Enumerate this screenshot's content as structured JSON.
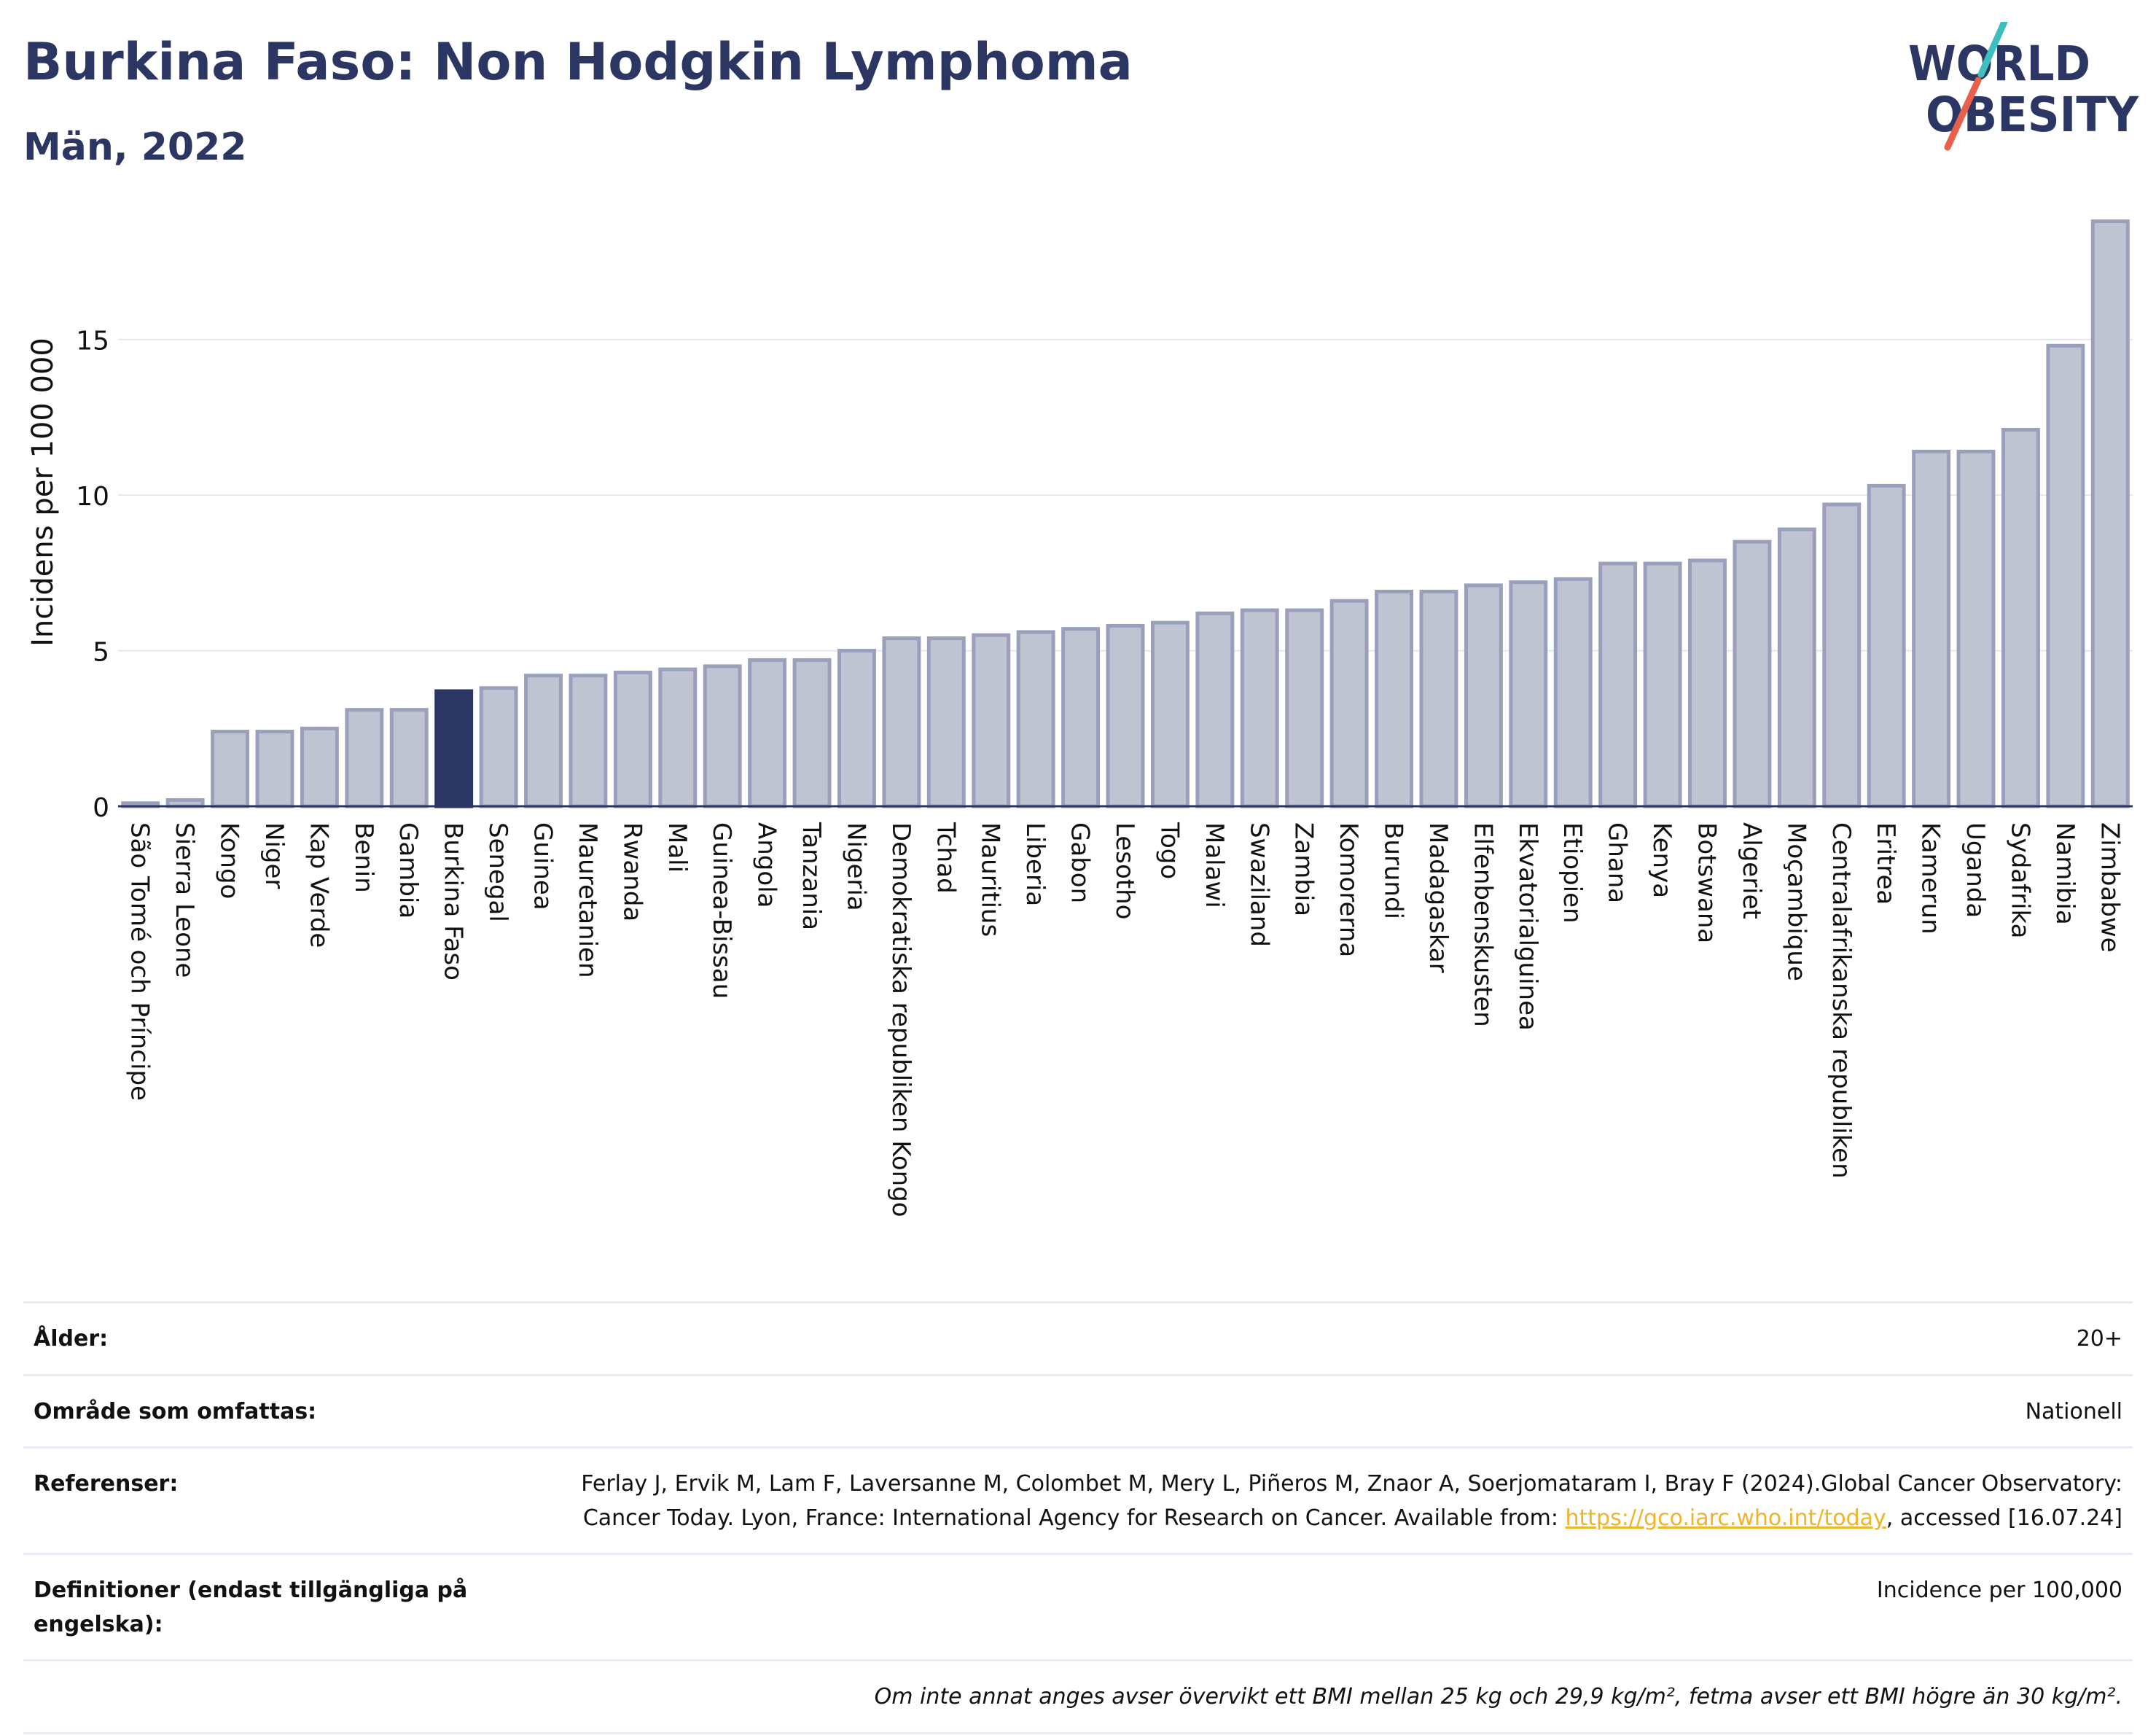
{
  "header": {
    "title": "Burkina Faso: Non Hodgkin Lymphoma",
    "subtitle": "Män, 2022"
  },
  "logo": {
    "line1": "WORLD",
    "line2": "OBESITY",
    "colors": {
      "text": "#2b3663",
      "slash_top": "#3ebfbf",
      "slash_bottom": "#e8604c"
    }
  },
  "chart_data": {
    "type": "bar",
    "ylabel": "Incidens per 100 000",
    "ylim": [
      0,
      19
    ],
    "yticks": [
      0,
      5,
      10,
      15
    ],
    "grid": true,
    "highlight": "Burkina Faso",
    "colors": {
      "bar": "#bfc3d2",
      "bar_edge": "#9aa0bc",
      "highlight": "#2b3663",
      "grid": "#e5e7ef",
      "axis": "#2b3663"
    },
    "categories": [
      "São Tomé och Príncipe",
      "Sierra Leone",
      "Kongo",
      "Niger",
      "Kap Verde",
      "Benin",
      "Gambia",
      "Burkina Faso",
      "Senegal",
      "Guinea",
      "Mauretanien",
      "Rwanda",
      "Mali",
      "Guinea-Bissau",
      "Angola",
      "Tanzania",
      "Nigeria",
      "Demokratiska republiken Kongo",
      "Tchad",
      "Mauritius",
      "Liberia",
      "Gabon",
      "Lesotho",
      "Togo",
      "Malawi",
      "Swaziland",
      "Zambia",
      "Komorerna",
      "Burundi",
      "Madagaskar",
      "Elfenbenskusten",
      "Ekvatorialguinea",
      "Etiopien",
      "Ghana",
      "Kenya",
      "Botswana",
      "Algeriet",
      "Moçambique",
      "Centralafrikanska republiken",
      "Eritrea",
      "Kamerun",
      "Uganda",
      "Sydafrika",
      "Namibia",
      "Zimbabwe"
    ],
    "values": [
      0.1,
      0.2,
      2.4,
      2.4,
      2.5,
      3.1,
      3.1,
      3.7,
      3.8,
      4.2,
      4.2,
      4.3,
      4.4,
      4.5,
      4.7,
      4.7,
      5.0,
      5.4,
      5.4,
      5.5,
      5.6,
      5.7,
      5.8,
      5.9,
      6.2,
      6.3,
      6.3,
      6.6,
      6.9,
      6.9,
      7.1,
      7.2,
      7.3,
      7.8,
      7.8,
      7.9,
      8.5,
      8.9,
      9.7,
      10.3,
      11.4,
      11.4,
      12.1,
      14.8,
      18.8
    ]
  },
  "info": {
    "age_label": "Ålder:",
    "age_value": "20+",
    "area_label": "Område som omfattas:",
    "area_value": "Nationell",
    "refs_label": "Referenser:",
    "refs_text": "Ferlay J, Ervik M, Lam F, Laversanne M, Colombet M, Mery L, Piñeros M, Znaor A, Soerjomataram I, Bray F (2024).Global Cancer Observatory: Cancer Today. Lyon, France: International Agency for Research on Cancer. Available from: ",
    "refs_link": "https://gco.iarc.who.int/today",
    "refs_tail": ", accessed [16.07.24]",
    "defs_label": "Definitioner (endast tillgängliga på engelska):",
    "defs_value": "Incidence per 100,000",
    "note": "Om inte annat anges avser övervikt ett BMI mellan 25 kg och 29,9 kg/m², fetma avser ett BMI högre än 30 kg/m²."
  }
}
